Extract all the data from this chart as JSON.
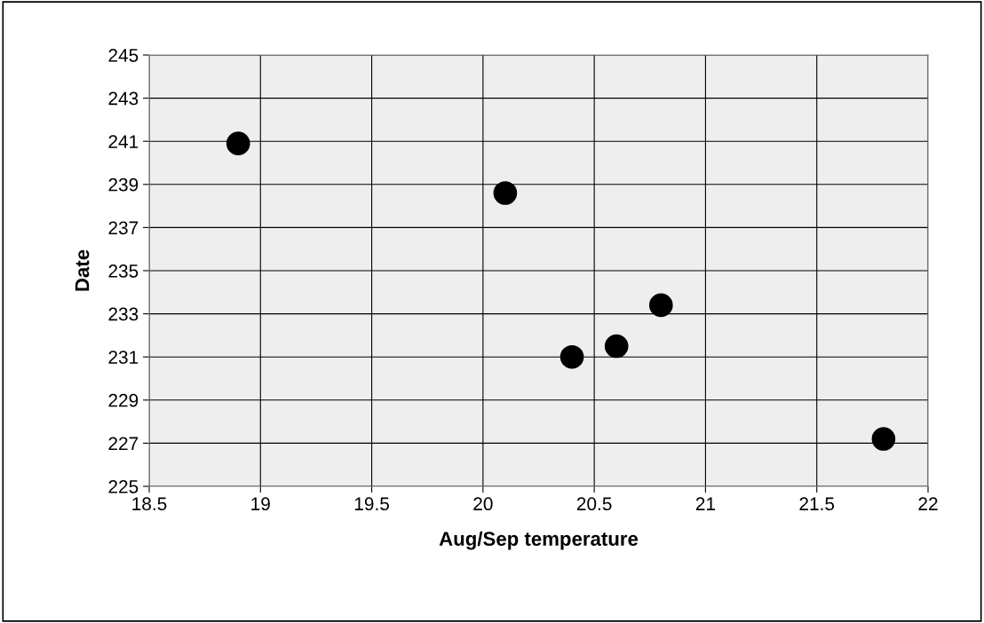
{
  "chart_data": {
    "type": "scatter",
    "xlabel": "Aug/Sep temperature",
    "ylabel": "Date",
    "x": [
      18.9,
      20.1,
      20.4,
      20.6,
      20.8,
      21.8
    ],
    "series": [
      {
        "color": "#000000",
        "values": [
          240.9,
          238.6,
          231.0,
          231.5,
          233.4,
          227.2
        ]
      }
    ],
    "xlim": [
      18.5,
      22
    ],
    "xticks": [
      18.5,
      19,
      19.5,
      20,
      20.5,
      21,
      21.5,
      22
    ],
    "ylim": [
      225,
      245
    ],
    "yticks": [
      225,
      227,
      229,
      231,
      233,
      235,
      237,
      239,
      241,
      243,
      245
    ],
    "grid": true,
    "marker": "circle",
    "legend": false
  }
}
